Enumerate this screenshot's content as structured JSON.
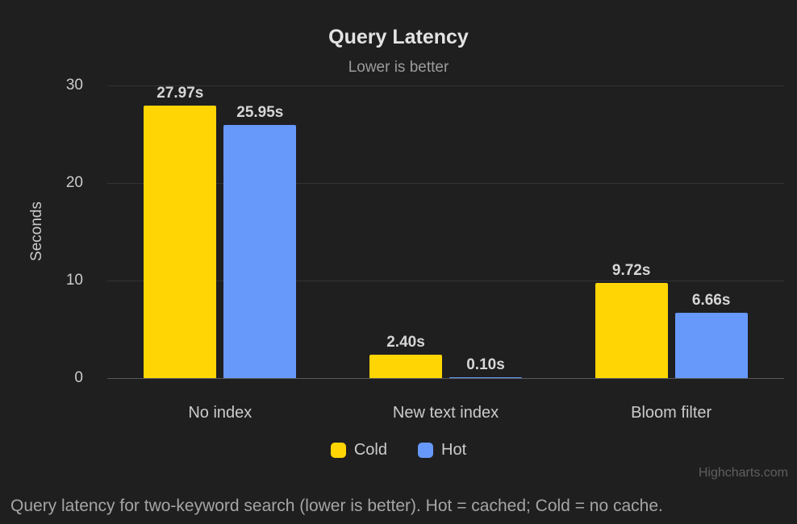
{
  "header": {
    "title": "Query Latency",
    "subtitle": "Lower is better"
  },
  "chart_data": {
    "type": "bar",
    "title": "Query Latency",
    "subtitle": "Lower is better",
    "categories": [
      "No index",
      "New text index",
      "Bloom filter"
    ],
    "series": [
      {
        "name": "Cold",
        "color": "#ffd504",
        "values": [
          27.97,
          2.4,
          9.72
        ],
        "value_labels": [
          "27.97s",
          "2.40s",
          "9.72s"
        ]
      },
      {
        "name": "Hot",
        "color": "#6699fa",
        "values": [
          25.95,
          0.1,
          6.66
        ],
        "value_labels": [
          "25.95s",
          "0.10s",
          "6.66s"
        ]
      }
    ],
    "xlabel": "",
    "ylabel": "Seconds",
    "ylim": [
      0,
      30
    ],
    "yticks": [
      0,
      10,
      20,
      30
    ],
    "grid": true,
    "legend_position": "bottom-center"
  },
  "footer": {
    "credits": "Highcharts.com",
    "caption": "Query latency for two-keyword search (lower is better). Hot = cached; Cold = no cache."
  },
  "colors": {
    "background": "#1f1f20",
    "gridline": "#333336",
    "axis_line": "#58585a",
    "title_text": "#e3e3e3",
    "subtitle_text": "#9c9c9c",
    "axis_text": "#cbcbcb",
    "data_label_text": "#d6d6d6",
    "legend_text": "#cccccc",
    "credits_text": "#5f5f5f",
    "caption_text": "#a5a5a5",
    "cold": "#ffd504",
    "hot": "#6699fa"
  }
}
